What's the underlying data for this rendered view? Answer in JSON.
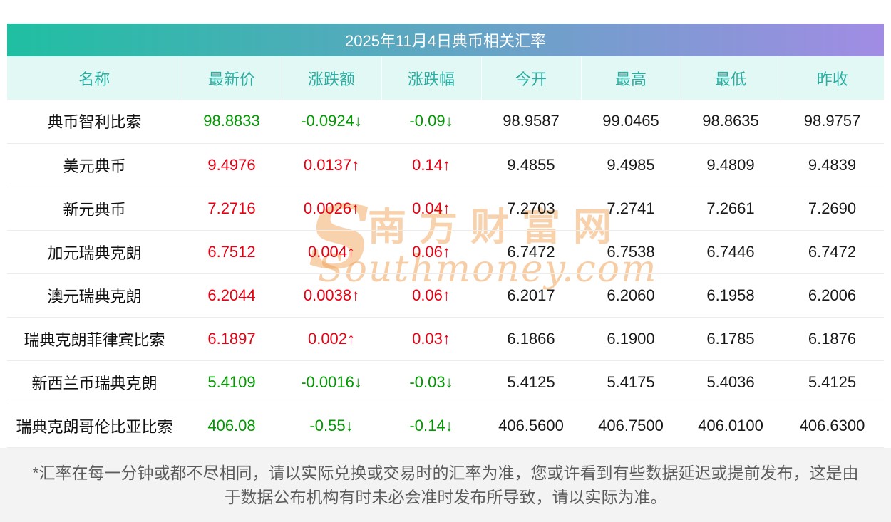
{
  "title": "2025年11月4日典币相关汇率",
  "chart_data": {
    "type": "table",
    "title": "2025年11月4日典币相关汇率",
    "columns": [
      "名称",
      "最新价",
      "涨跌额",
      "涨跌幅",
      "今开",
      "最高",
      "最低",
      "昨收"
    ],
    "rows": [
      {
        "name": "典币智利比索",
        "latest": "98.8833",
        "change": "-0.0924↓",
        "pct": "-0.09↓",
        "open": "98.9587",
        "high": "99.0465",
        "low": "98.8635",
        "prev": "98.9757",
        "trend": "down"
      },
      {
        "name": "美元典币",
        "latest": "9.4976",
        "change": "0.0137↑",
        "pct": "0.14↑",
        "open": "9.4855",
        "high": "9.4985",
        "low": "9.4809",
        "prev": "9.4839",
        "trend": "up"
      },
      {
        "name": "新元典币",
        "latest": "7.2716",
        "change": "0.0026↑",
        "pct": "0.04↑",
        "open": "7.2703",
        "high": "7.2741",
        "low": "7.2661",
        "prev": "7.2690",
        "trend": "up"
      },
      {
        "name": "加元瑞典克朗",
        "latest": "6.7512",
        "change": "0.004↑",
        "pct": "0.06↑",
        "open": "6.7472",
        "high": "6.7538",
        "low": "6.7446",
        "prev": "6.7472",
        "trend": "up"
      },
      {
        "name": "澳元瑞典克朗",
        "latest": "6.2044",
        "change": "0.0038↑",
        "pct": "0.06↑",
        "open": "6.2017",
        "high": "6.2060",
        "low": "6.1958",
        "prev": "6.2006",
        "trend": "up"
      },
      {
        "name": "瑞典克朗菲律宾比索",
        "latest": "6.1897",
        "change": "0.002↑",
        "pct": "0.03↑",
        "open": "6.1866",
        "high": "6.1900",
        "low": "6.1785",
        "prev": "6.1876",
        "trend": "up"
      },
      {
        "name": "新西兰币瑞典克朗",
        "latest": "5.4109",
        "change": "-0.0016↓",
        "pct": "-0.03↓",
        "open": "5.4125",
        "high": "5.4175",
        "low": "5.4036",
        "prev": "5.4125",
        "trend": "down"
      },
      {
        "name": "瑞典克朗哥伦比亚比索",
        "latest": "406.08",
        "change": "-0.55↓",
        "pct": "-0.14↓",
        "open": "406.5600",
        "high": "406.7500",
        "low": "406.0100",
        "prev": "406.6300",
        "trend": "down"
      }
    ]
  },
  "watermark": {
    "logo": "S",
    "cn": "南方财富网",
    "en": "Southmoney.com"
  },
  "footer": {
    "line1": "*汇率在每一分钟或都不尽相同，请以实际兑换或交易时的汇率为准，您或许看到有些数据延迟或提前发布，这是由",
    "line2": "于数据公布机构有时未必会准时发布所导致，请以实际为准。"
  },
  "colors": {
    "up": "#e60012",
    "down": "#009900",
    "header_text": "#2aaea2",
    "header_bg": "#e2f8f4",
    "title_gradient_left": "#1fbfa2",
    "title_gradient_right": "#a18ce4",
    "watermark": "#f2a65e"
  }
}
